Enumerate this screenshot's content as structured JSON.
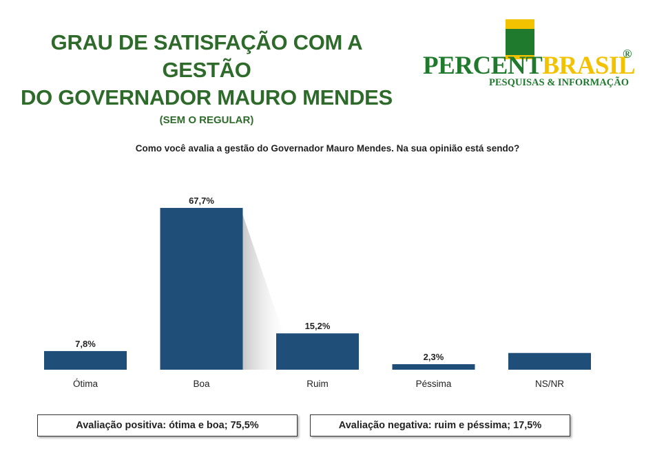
{
  "header": {
    "title_line1": "GRAU DE SATISFAÇÃO COM A GESTÃO",
    "title_line2": "DO GOVERNADOR MAURO MENDES",
    "subtitle": "(SEM O REGULAR)"
  },
  "logo": {
    "word_green": "PERCENT",
    "word_yellow": "BRASIL",
    "registered": "®",
    "tagline": "PESQUISAS & INFORMAÇÃO"
  },
  "question": "Como você avalia a gestão do Governador Mauro Mendes. Na sua opinião está sendo?",
  "chart_data": {
    "type": "bar",
    "categories": [
      "Ótima",
      "Boa",
      "Ruim",
      "Péssima",
      "NS/NR"
    ],
    "values": [
      7.8,
      67.7,
      15.2,
      2.3,
      7.0
    ],
    "data_labels": [
      "7,8%",
      "67,7%",
      "15,2%",
      "2,3%",
      ""
    ],
    "ylim": [
      0,
      70
    ],
    "bar_color": "#1f4e79",
    "grid": false,
    "legend": "none"
  },
  "summary": {
    "positive": "Avaliação positiva: ótima e boa; 75,5%",
    "negative": "Avaliação negativa: ruim e péssima; 17,5%"
  },
  "colors": {
    "title_green": "#2e6b2b",
    "logo_green": "#1f7a2e",
    "logo_yellow": "#f2c200",
    "bar_blue": "#1f4e79"
  }
}
